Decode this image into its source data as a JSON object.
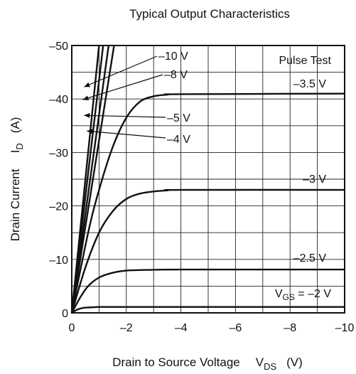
{
  "chart_data": {
    "type": "line",
    "title": "Typical Output Characteristics",
    "xlabel": "Drain to Source Voltage",
    "xlabel_symbol": "V",
    "xlabel_symbol_sub": "DS",
    "xlabel_unit": "(V)",
    "ylabel": "Drain Current",
    "ylabel_symbol": "I",
    "ylabel_symbol_sub": "D",
    "ylabel_unit": "(A)",
    "xlim": [
      0,
      -10
    ],
    "ylim": [
      0,
      -50
    ],
    "x_ticks": [
      0,
      -2,
      -4,
      -6,
      -8,
      -10
    ],
    "x_tick_labels": [
      "0",
      "–2",
      "–4",
      "–6",
      "–8",
      "–10"
    ],
    "y_ticks": [
      0,
      -10,
      -20,
      -30,
      -40,
      -50
    ],
    "y_tick_labels": [
      "0",
      "–10",
      "–20",
      "–30",
      "–40",
      "–50"
    ],
    "grid": true,
    "annotation": "Pulse Test",
    "series": [
      {
        "name": "V_GS = –2 V",
        "label": "–2 V",
        "label_prefix": "V",
        "label_prefix_sub": "GS",
        "label_prefix_eq": " = ",
        "x": [
          0,
          -0.2,
          -0.4,
          -0.6,
          -0.8,
          -1.0,
          -1.5,
          -2,
          -4,
          -10
        ],
        "y": [
          0,
          -0.6,
          -0.9,
          -1.0,
          -1.05,
          -1.1,
          -1.1,
          -1.1,
          -1.1,
          -1.1
        ]
      },
      {
        "name": "–2.5 V",
        "label": "–2.5 V",
        "x": [
          0,
          -0.3,
          -0.6,
          -1.0,
          -1.5,
          -2.0,
          -2.5,
          -3.0,
          -4.0,
          -10
        ],
        "y": [
          0,
          -2.8,
          -5.0,
          -6.6,
          -7.5,
          -7.9,
          -8.0,
          -8.05,
          -8.1,
          -8.1
        ]
      },
      {
        "name": "–3 V",
        "label": "–3 V",
        "x": [
          0,
          -0.5,
          -1.0,
          -1.5,
          -2.0,
          -2.5,
          -3.0,
          -3.5,
          -4.0,
          -10
        ],
        "y": [
          0,
          -8.5,
          -15.0,
          -19.0,
          -21.3,
          -22.3,
          -22.7,
          -22.9,
          -23.0,
          -23.0
        ]
      },
      {
        "name": "–3.5 V",
        "label": "–3.5 V",
        "x": [
          0,
          -0.6,
          -1.0,
          -1.5,
          -2.0,
          -2.5,
          -3.0,
          -3.5,
          -4.0,
          -10
        ],
        "y": [
          0,
          -15.0,
          -23.0,
          -31.0,
          -36.5,
          -39.5,
          -40.5,
          -40.8,
          -40.9,
          -41.0
        ]
      },
      {
        "name": "–4 V",
        "label": "–4 V",
        "x": [
          0,
          -1.55
        ],
        "y": [
          0,
          -50
        ]
      },
      {
        "name": "–5 V",
        "label": "–5 V",
        "x": [
          0,
          -1.35
        ],
        "y": [
          0,
          -50
        ]
      },
      {
        "name": "–8 V",
        "label": "–8 V",
        "x": [
          0,
          -1.15
        ],
        "y": [
          0,
          -50
        ]
      },
      {
        "name": "–10 V",
        "label": "–10 V",
        "x": [
          0,
          -1.0
        ],
        "y": [
          0,
          -50
        ]
      }
    ]
  }
}
